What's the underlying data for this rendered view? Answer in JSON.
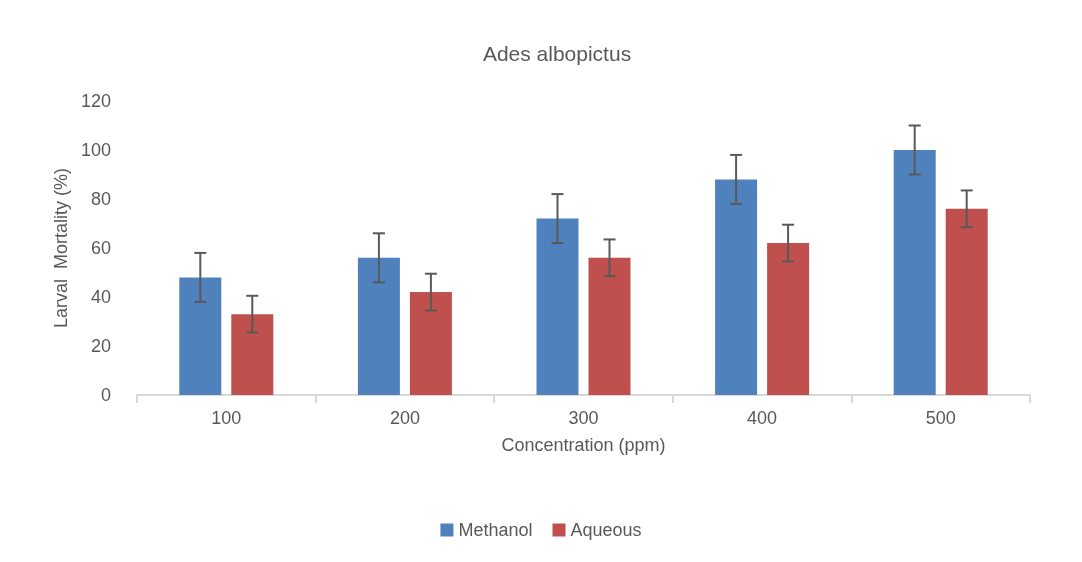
{
  "chart_data": {
    "type": "bar",
    "title": "Ades albopictus",
    "xlabel": "Concentration (ppm)",
    "ylabel": "Larval  Mortality (%)",
    "categories": [
      "100",
      "200",
      "300",
      "400",
      "500"
    ],
    "series": [
      {
        "name": "Methanol",
        "color": "#4f81bd",
        "values": [
          48,
          56,
          72,
          88,
          100
        ],
        "errors": [
          10,
          10,
          10,
          10,
          10
        ]
      },
      {
        "name": "Aqueous",
        "color": "#c0504d",
        "values": [
          33,
          42,
          56,
          62,
          76
        ],
        "errors": [
          7.5,
          7.5,
          7.5,
          7.5,
          7.5
        ]
      }
    ],
    "ylim": [
      0,
      120
    ],
    "yticks": [
      0,
      20,
      40,
      60,
      80,
      100,
      120
    ],
    "grid": false,
    "legend": "bottom"
  }
}
